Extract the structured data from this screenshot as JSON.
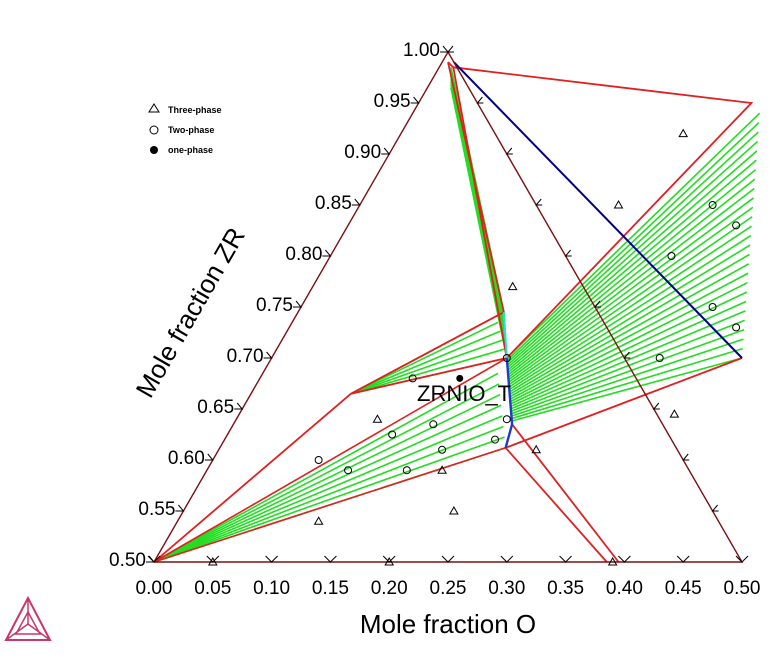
{
  "chart_data": {
    "type": "scatter",
    "subtype": "ternary-phase-diagram",
    "xlabel": "Mole fraction O",
    "ylabel": "Mole fraction ZR",
    "xlim": [
      0,
      0.5
    ],
    "ylim": [
      0.5,
      1.0
    ],
    "x_ticks": [
      "0.00",
      "0.05",
      "0.10",
      "0.15",
      "0.20",
      "0.25",
      "0.30",
      "0.35",
      "0.40",
      "0.45",
      "0.50"
    ],
    "y_ticks": [
      "0.50",
      "0.55",
      "0.60",
      "0.65",
      "0.70",
      "0.75",
      "0.80",
      "0.85",
      "0.90",
      "0.95",
      "1.00"
    ],
    "phase_label": "ZRNIO_T",
    "legend": {
      "placement": "top-left",
      "items": [
        {
          "label": "Three-phase",
          "marker": "triangle"
        },
        {
          "label": "Two-phase",
          "marker": "open-circle"
        },
        {
          "label": "one-phase",
          "marker": "filled-circle"
        }
      ]
    },
    "colors": {
      "frame": "#7a1010",
      "boundary": "#e02020",
      "tieline": "#22dd22",
      "single_phase_edge": "#000088",
      "single_phase_segment": "#1e3ccc",
      "cyan_segment": "#22e0e0",
      "outside_axis": "#7a1010"
    },
    "points": {
      "three_phase": [
        [
          0.24,
          0.92
        ],
        [
          0.22,
          0.85
        ],
        [
          0.17,
          0.77
        ],
        [
          0.12,
          0.64
        ],
        [
          0.2,
          0.59
        ],
        [
          0.27,
          0.61
        ],
        [
          0.37,
          0.645
        ],
        [
          0.12,
          0.54
        ],
        [
          0.23,
          0.55
        ],
        [
          0.05,
          0.5
        ],
        [
          0.2,
          0.5
        ],
        [
          0.39,
          0.5
        ]
      ],
      "two_phase": [
        [
          0.3,
          0.85
        ],
        [
          0.33,
          0.83
        ],
        [
          0.29,
          0.8
        ],
        [
          0.35,
          0.75
        ],
        [
          0.38,
          0.73
        ],
        [
          0.33,
          0.7
        ],
        [
          0.2,
          0.7
        ],
        [
          0.13,
          0.68
        ],
        [
          0.17,
          0.635
        ],
        [
          0.14,
          0.625
        ],
        [
          0.23,
          0.64
        ],
        [
          0.09,
          0.6
        ],
        [
          0.12,
          0.59
        ],
        [
          0.17,
          0.59
        ],
        [
          0.19,
          0.61
        ],
        [
          0.23,
          0.62
        ]
      ],
      "one_phase": [
        [
          0.17,
          0.68
        ]
      ]
    }
  },
  "logo": {
    "name": "thermo-calc-logo",
    "color": "#c8376b"
  }
}
